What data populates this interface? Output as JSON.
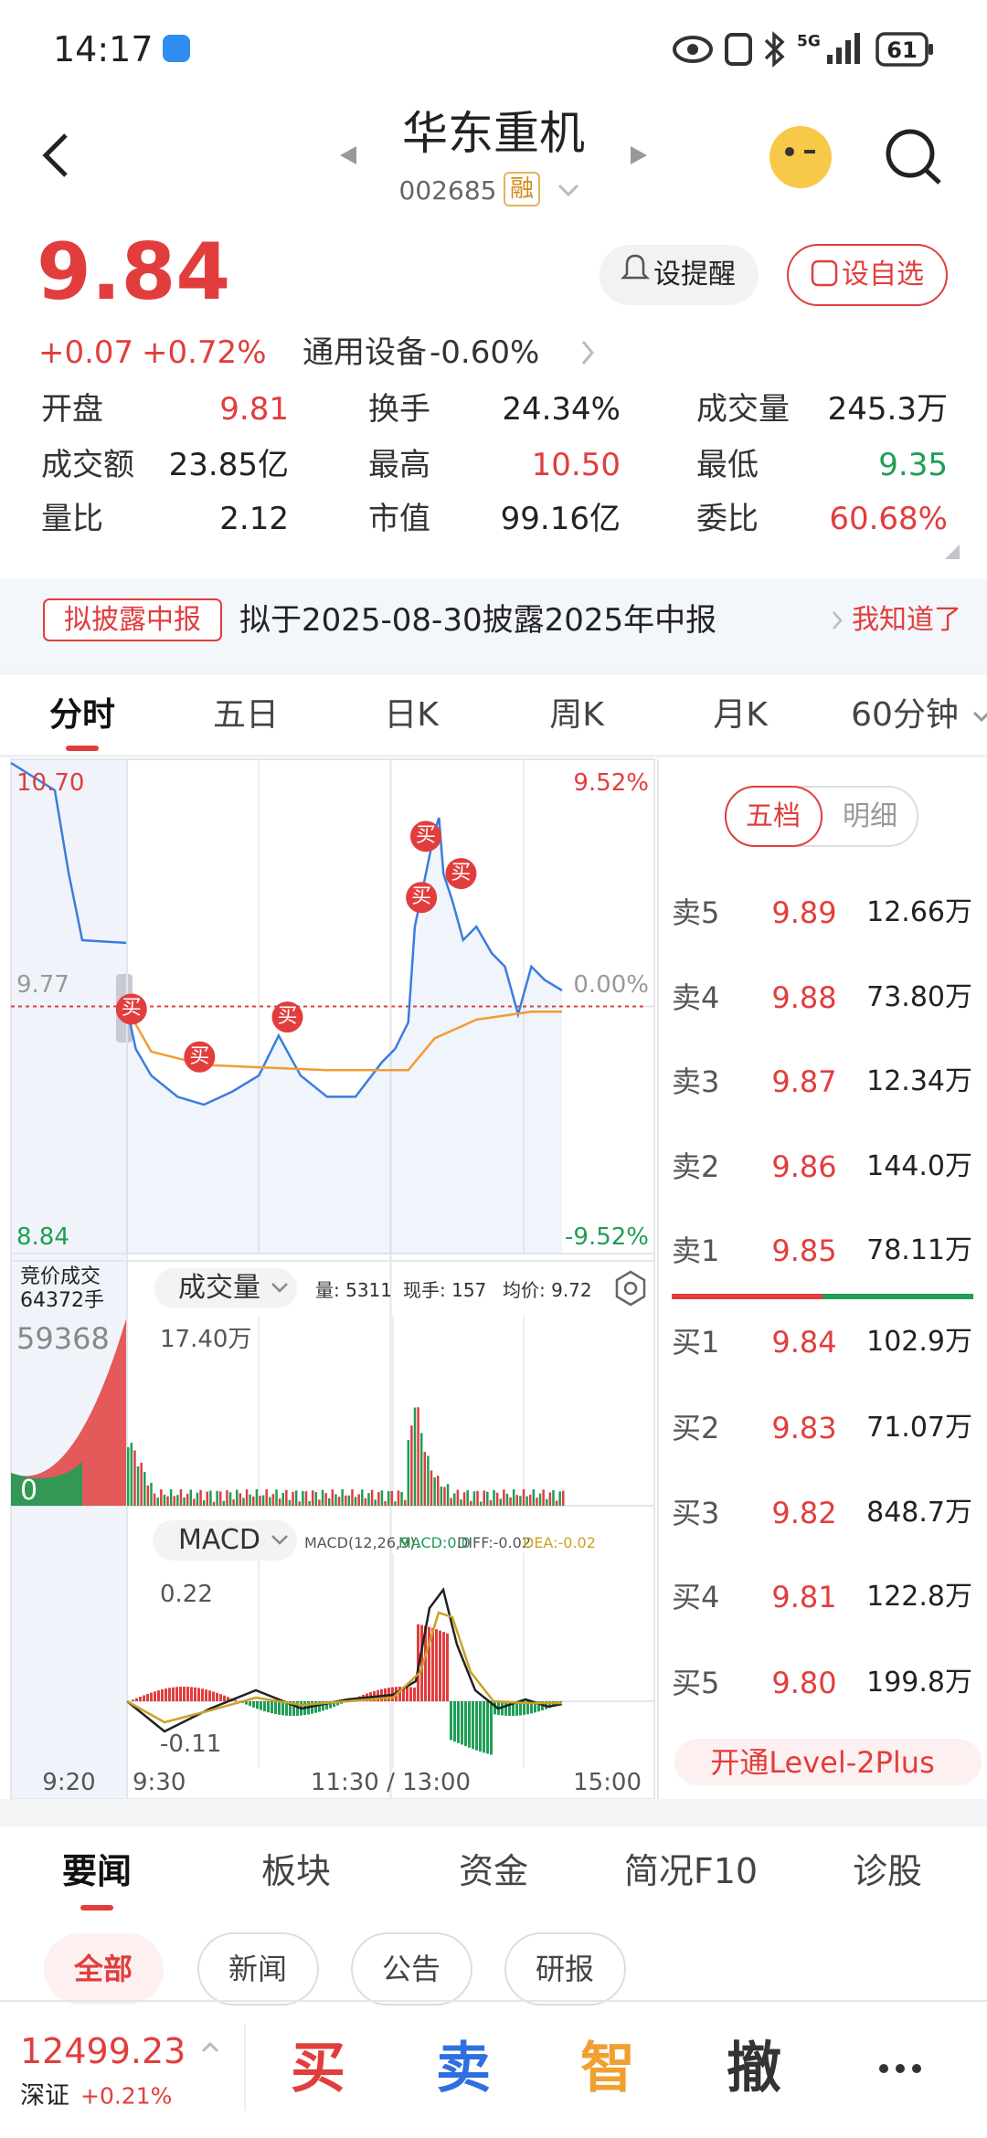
{
  "status_bar": {
    "time": "14:17",
    "network": "5G",
    "battery": "61"
  },
  "header": {
    "title": "华东重机",
    "code": "002685",
    "tag": "融"
  },
  "quote": {
    "price": "9.84",
    "change": "+0.07",
    "change_pct": "+0.72%",
    "sector": "通用设备",
    "sector_change": "-0.60%",
    "buttons": [
      "设提醒",
      "设自选"
    ]
  },
  "stats": [
    {
      "label": "开盘",
      "value": "9.81",
      "color": "#e23d3d"
    },
    {
      "label": "换手",
      "value": "24.34%",
      "color": "#222222"
    },
    {
      "label": "成交量",
      "value": "245.3万",
      "color": "#222222"
    },
    {
      "label": "成交额",
      "value": "23.85亿",
      "color": "#222222"
    },
    {
      "label": "最高",
      "value": "10.50",
      "color": "#e23d3d"
    },
    {
      "label": "最低",
      "value": "9.35",
      "color": "#1f9e55"
    },
    {
      "label": "量比",
      "value": "2.12",
      "color": "#222222"
    },
    {
      "label": "市值",
      "value": "99.16亿",
      "color": "#222222"
    },
    {
      "label": "委比",
      "value": "60.68%",
      "color": "#e23d3d"
    }
  ],
  "notice": {
    "tag": "拟披露中报",
    "text": "拟于2025-08-30披露2025年中报",
    "action": "我知道了"
  },
  "tabs": [
    "分时",
    "五日",
    "日K",
    "周K",
    "月K",
    "60分钟"
  ],
  "intraday": {
    "type": "line",
    "series": [
      {
        "color": "#3b7ddd",
        "x": [
          0,
          4,
          11,
          23,
          35,
          48,
          60,
          69,
          79,
          91,
          104,
          116,
          122,
          128,
          131,
          136,
          140,
          142,
          144,
          148,
          153,
          159,
          166,
          172,
          178,
          184,
          190,
          198
        ],
        "values": [
          9.76,
          9.61,
          9.51,
          9.43,
          9.4,
          9.45,
          9.51,
          9.66,
          9.51,
          9.43,
          9.43,
          9.56,
          9.61,
          9.71,
          10.07,
          10.27,
          10.43,
          10.48,
          10.27,
          10.17,
          10.02,
          10.07,
          9.97,
          9.92,
          9.74,
          9.92,
          9.87,
          9.83
        ]
      },
      {
        "color": "#f39c34",
        "x": [
          0,
          11,
          35,
          91,
          128,
          140,
          159,
          184,
          198
        ],
        "values": [
          9.76,
          9.6,
          9.55,
          9.53,
          9.53,
          9.65,
          9.72,
          9.75,
          9.75
        ]
      }
    ],
    "markers": [
      {
        "label": "买",
        "x": 2,
        "y": 9.76
      },
      {
        "label": "买",
        "x": 33,
        "y": 9.58
      },
      {
        "label": "买",
        "x": 73,
        "y": 9.73
      },
      {
        "label": "买",
        "x": 136,
        "y": 10.41
      },
      {
        "label": "买",
        "x": 134,
        "y": 10.18
      },
      {
        "label": "买",
        "x": 152,
        "y": 10.27
      }
    ],
    "xlim": [
      -10,
      240
    ],
    "xticks": [
      {
        "value": -10,
        "label": "9:20"
      },
      {
        "value": 0,
        "label": "9:30"
      },
      {
        "value": 120,
        "label": "11:30 / 13:00"
      },
      {
        "value": 240,
        "label": "15:00"
      }
    ],
    "ylim": [
      8.84,
      10.7
    ],
    "yticks": [
      {
        "value": 10.7,
        "label": "10.70"
      },
      9.77,
      8.84
    ],
    "y2lim": [
      -9.52,
      9.52
    ],
    "y2ticks": [
      {
        "value": 9.52,
        "label": "9.52%"
      },
      {
        "value": 0,
        "label": "0.00%"
      },
      {
        "value": -9.52,
        "label": "-9.52%"
      }
    ]
  },
  "volume_panel": {
    "auction_label": "竞价成交",
    "auction_volume": "64372手",
    "title": "成交量",
    "volume": "量: 5311",
    "current": "现手: 157",
    "avg_price": "均价: 9.72",
    "max_label": "17.40万",
    "auction_max": "59368",
    "zero": "0"
  },
  "macd_panel": {
    "title": "MACD",
    "params": "MACD(12,26,9):",
    "macd": "MACD:0.0",
    "diff": "DIFF:-0.02",
    "dea": "DEA:-0.02",
    "max_label": "0.22",
    "min_label": "-0.11"
  },
  "orderbook": {
    "toggle": [
      "五档",
      "明细"
    ],
    "asks": [
      {
        "label": "卖5",
        "price": "9.89",
        "volume": "12.66万"
      },
      {
        "label": "卖4",
        "price": "9.88",
        "volume": "73.80万"
      },
      {
        "label": "卖3",
        "price": "9.87",
        "volume": "12.34万"
      },
      {
        "label": "卖2",
        "price": "9.86",
        "volume": "144.0万"
      },
      {
        "label": "卖1",
        "price": "9.85",
        "volume": "78.11万"
      }
    ],
    "bids": [
      {
        "label": "买1",
        "price": "9.84",
        "volume": "102.9万"
      },
      {
        "label": "买2",
        "price": "9.83",
        "volume": "71.07万"
      },
      {
        "label": "买3",
        "price": "9.82",
        "volume": "848.7万"
      },
      {
        "label": "买4",
        "price": "9.81",
        "volume": "122.8万"
      },
      {
        "label": "买5",
        "price": "9.80",
        "volume": "199.8万"
      }
    ],
    "upgrade": "开通Level-2Plus"
  },
  "news_tabs": [
    "要闻",
    "板块",
    "资金",
    "简况F10",
    "诊股"
  ],
  "news_filters": [
    "全部",
    "新闻",
    "公告",
    "研报"
  ],
  "bottom_bar": {
    "index_value": "12499.23",
    "index_name": "深证",
    "index_change": "+0.21%",
    "actions": [
      "买",
      "卖",
      "智",
      "撤"
    ]
  }
}
